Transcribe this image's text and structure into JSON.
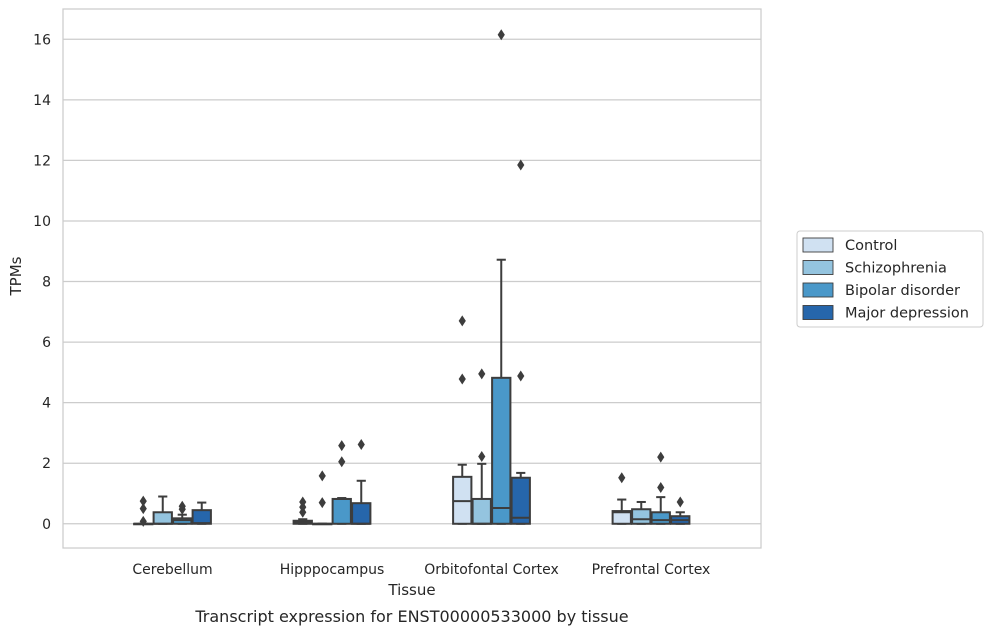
{
  "caption": "Transcript expression for ENST00000533000 by tissue",
  "chart_data": {
    "type": "box",
    "title": "",
    "xlabel": "Tissue",
    "ylabel": "TPMs",
    "ylim": [
      -0.8,
      17.0
    ],
    "yticks": [
      0,
      2,
      4,
      6,
      8,
      10,
      12,
      14,
      16
    ],
    "grid": "horizontal",
    "legend_position": "right",
    "categories": [
      "Cerebellum",
      "Hipppocampus",
      "Orbitofontal Cortex",
      "Prefrontal Cortex"
    ],
    "series": [
      {
        "name": "Control",
        "color": "#d0e1f2",
        "boxes": [
          {
            "q1": 0.0,
            "median": 0.0,
            "q3": 0.0,
            "whisker_low": 0.0,
            "whisker_high": 0.0,
            "outliers": [
              0.75,
              0.5,
              0.08
            ]
          },
          {
            "q1": 0.0,
            "median": 0.05,
            "q3": 0.1,
            "whisker_low": 0.0,
            "whisker_high": 0.15,
            "outliers": [
              0.72,
              0.55,
              0.38
            ]
          },
          {
            "q1": 0.0,
            "median": 0.75,
            "q3": 1.55,
            "whisker_low": 0.0,
            "whisker_high": 1.95,
            "outliers": [
              6.7,
              4.78
            ]
          },
          {
            "q1": 0.0,
            "median": 0.38,
            "q3": 0.42,
            "whisker_low": 0.0,
            "whisker_high": 0.8,
            "outliers": [
              1.52
            ]
          }
        ]
      },
      {
        "name": "Schizophrenia",
        "color": "#94c4df",
        "boxes": [
          {
            "q1": 0.0,
            "median": 0.0,
            "q3": 0.38,
            "whisker_low": 0.0,
            "whisker_high": 0.9,
            "outliers": []
          },
          {
            "q1": 0.0,
            "median": 0.0,
            "q3": 0.0,
            "whisker_low": 0.0,
            "whisker_high": 0.0,
            "outliers": [
              1.58,
              0.7
            ]
          },
          {
            "q1": 0.0,
            "median": 0.0,
            "q3": 0.82,
            "whisker_low": 0.0,
            "whisker_high": 1.98,
            "outliers": [
              4.95,
              2.22
            ]
          },
          {
            "q1": 0.0,
            "median": 0.15,
            "q3": 0.48,
            "whisker_low": 0.0,
            "whisker_high": 0.72,
            "outliers": []
          }
        ]
      },
      {
        "name": "Bipolar disorder",
        "color": "#4a98c9",
        "boxes": [
          {
            "q1": 0.0,
            "median": 0.12,
            "q3": 0.18,
            "whisker_low": 0.0,
            "whisker_high": 0.3,
            "outliers": [
              0.58,
              0.48
            ]
          },
          {
            "q1": 0.0,
            "median": 0.82,
            "q3": 0.82,
            "whisker_low": 0.0,
            "whisker_high": 0.85,
            "outliers": [
              2.58,
              2.05
            ]
          },
          {
            "q1": 0.0,
            "median": 0.52,
            "q3": 4.82,
            "whisker_low": 0.0,
            "whisker_high": 8.72,
            "outliers": [
              16.15
            ]
          },
          {
            "q1": 0.0,
            "median": 0.12,
            "q3": 0.38,
            "whisker_low": 0.0,
            "whisker_high": 0.88,
            "outliers": [
              2.2,
              1.2
            ]
          }
        ]
      },
      {
        "name": "Major depression",
        "color": "#2666ab",
        "boxes": [
          {
            "q1": 0.0,
            "median": 0.02,
            "q3": 0.45,
            "whisker_low": 0.0,
            "whisker_high": 0.7,
            "outliers": []
          },
          {
            "q1": 0.0,
            "median": 0.0,
            "q3": 0.68,
            "whisker_low": 0.0,
            "whisker_high": 1.42,
            "outliers": [
              2.62
            ]
          },
          {
            "q1": 0.0,
            "median": 0.2,
            "q3": 1.52,
            "whisker_low": 0.0,
            "whisker_high": 1.68,
            "outliers": [
              11.85,
              4.88
            ]
          },
          {
            "q1": 0.0,
            "median": 0.12,
            "q3": 0.25,
            "whisker_low": 0.0,
            "whisker_high": 0.38,
            "outliers": [
              0.72
            ]
          }
        ]
      }
    ]
  }
}
